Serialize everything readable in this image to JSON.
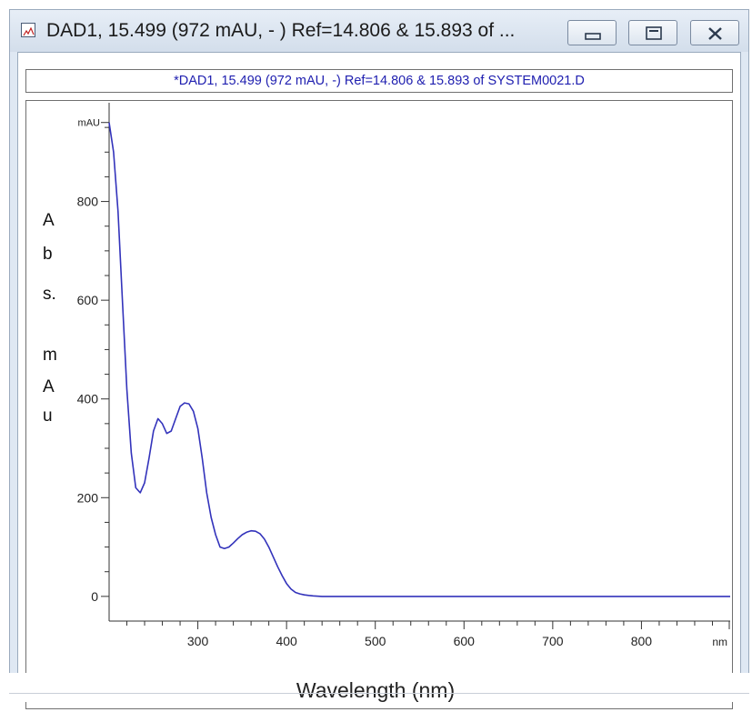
{
  "window": {
    "title": "DAD1, 15.499 (972 mAU, - ) Ref=14.806 & 15.893 of ...",
    "buttons": [
      "minimize",
      "maximize",
      "close"
    ],
    "icons": {
      "app": "spectrum-app-icon",
      "minimize": "minimize-icon",
      "maximize": "maximize-icon",
      "close": "close-icon"
    }
  },
  "chart_data": {
    "type": "line",
    "title": "*DAD1, 15.499 (972 mAU, -) Ref=14.806 & 15.893 of SYSTEM0021.D",
    "xlabel": "Wavelength (nm)",
    "x_unit": "nm",
    "ylabel_letters": [
      "A",
      "b",
      "s.",
      "m",
      "A",
      "u"
    ],
    "y_unit": "mAU",
    "xlim": [
      200,
      900
    ],
    "ylim": [
      -50,
      1000
    ],
    "x_ticks": [
      300,
      400,
      500,
      600,
      700,
      800
    ],
    "y_ticks": [
      0,
      200,
      400,
      600,
      800
    ],
    "grid": false,
    "line_color": "#3333bb",
    "series": [
      {
        "x": [
          200,
          205,
          210,
          215,
          220,
          225,
          230,
          235,
          240,
          245,
          250,
          255,
          260,
          265,
          270,
          275,
          280,
          285,
          290,
          295,
          300,
          305,
          310,
          315,
          320,
          325,
          330,
          335,
          340,
          345,
          350,
          355,
          360,
          365,
          370,
          375,
          380,
          385,
          390,
          395,
          400,
          405,
          410,
          415,
          420,
          425,
          430,
          440,
          460,
          500,
          600,
          700,
          800,
          900
        ],
        "values": [
          960,
          900,
          780,
          600,
          420,
          290,
          220,
          210,
          230,
          280,
          335,
          360,
          350,
          330,
          335,
          360,
          385,
          392,
          390,
          375,
          340,
          280,
          210,
          160,
          125,
          100,
          97,
          100,
          108,
          117,
          125,
          130,
          133,
          132,
          127,
          116,
          100,
          80,
          60,
          42,
          26,
          15,
          8,
          5,
          3,
          2,
          1,
          0,
          0,
          0,
          0,
          0,
          0,
          0
        ]
      }
    ]
  }
}
